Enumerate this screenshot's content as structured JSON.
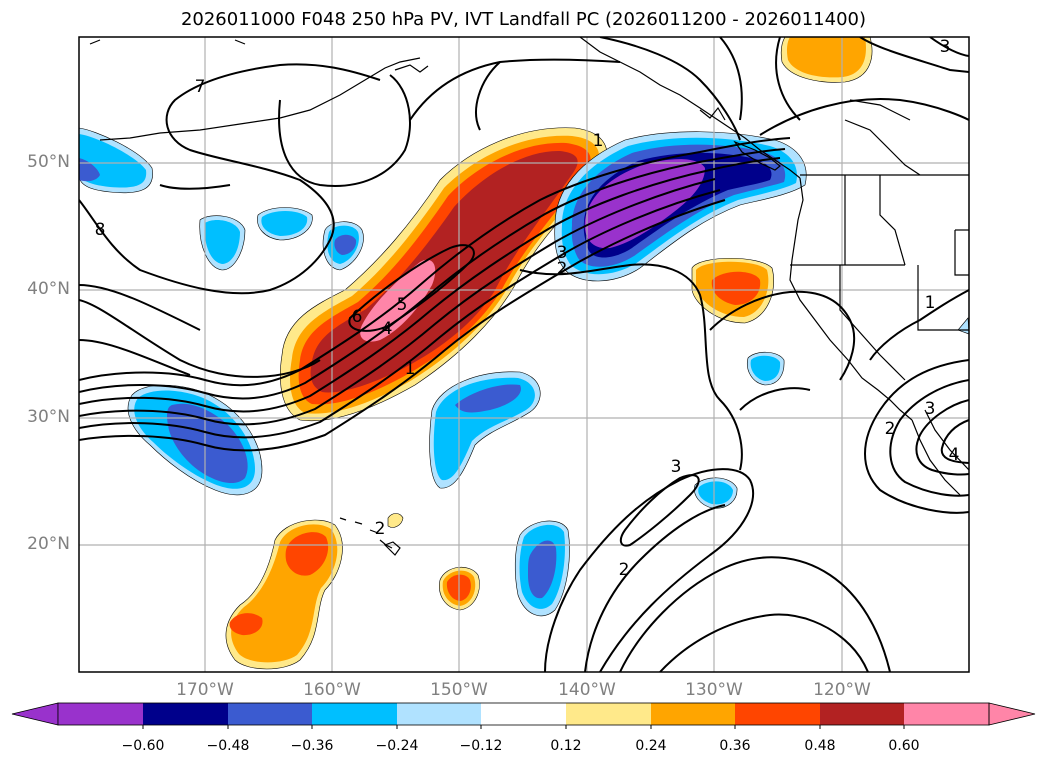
{
  "title": "2026011000 F048 250 hPa PV, IVT Landfall PC (2026011200 - 2026011400)",
  "lat_labels": [
    "50°N",
    "40°N",
    "30°N",
    "20°N"
  ],
  "lon_labels": [
    "170°W",
    "160°W",
    "150°W",
    "140°W",
    "130°W",
    "120°W"
  ],
  "colorbar": {
    "ticks": [
      "−0.60",
      "−0.48",
      "−0.36",
      "−0.24",
      "−0.12",
      "0.12",
      "0.24",
      "0.36",
      "0.48",
      "0.60"
    ],
    "colors": [
      "#9932cc",
      "#00008b",
      "#3b5bd0",
      "#00bfff",
      "#b0e2ff",
      "#ffffff",
      "#ffe98a",
      "#ffa500",
      "#ff4500",
      "#b22222",
      "#ff85a8"
    ]
  },
  "contour_labels": [
    "1",
    "2",
    "3",
    "4",
    "5",
    "6",
    "7",
    "8",
    "1",
    "2",
    "3",
    "1",
    "2",
    "3",
    "4",
    "2",
    "3"
  ],
  "fill_colors": {
    "pink": "#ff85a8",
    "darkred": "#b22222",
    "redorange": "#ff4500",
    "orange": "#ffa500",
    "yellow": "#ffe98a",
    "lightblue": "#b0e2ff",
    "skyblue": "#00bfff",
    "royal": "#3b5bd0",
    "navy": "#00008b",
    "purple": "#9932cc"
  }
}
